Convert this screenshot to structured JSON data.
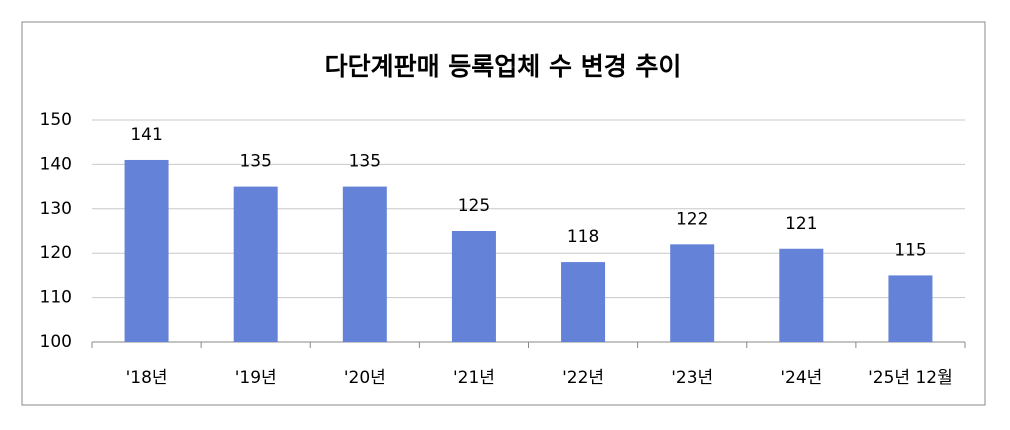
{
  "chart_data": {
    "type": "bar",
    "title": "다단계판매 등록업체 수 변경 추이",
    "categories": [
      "'18년",
      "'19년",
      "'20년",
      "'21년",
      "'22년",
      "'23년",
      "'24년",
      "'25년 12월"
    ],
    "values": [
      141,
      135,
      135,
      125,
      118,
      122,
      121,
      115
    ],
    "color": "#6483d8",
    "ylim": [
      100,
      150
    ],
    "yticks": [
      100,
      110,
      120,
      130,
      140,
      150
    ],
    "grid": true
  }
}
